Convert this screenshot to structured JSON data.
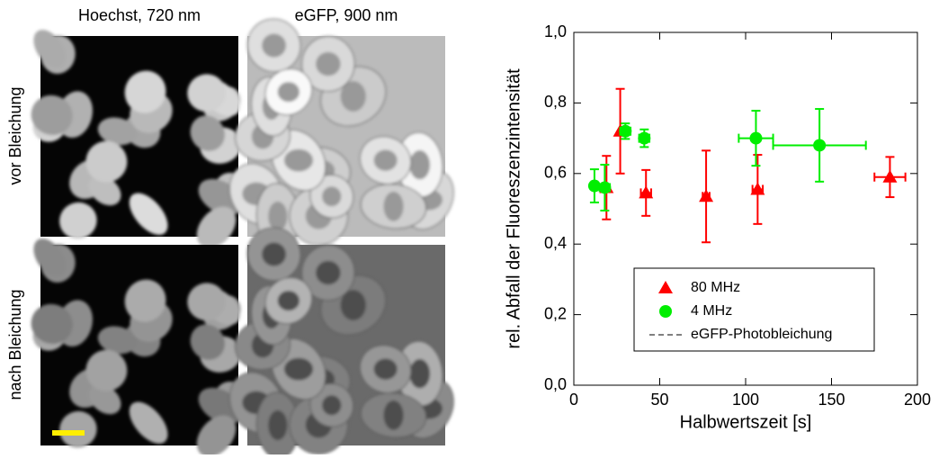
{
  "figure": {
    "column_titles": [
      "Hoechst, 720 nm",
      "eGFP, 900 nm"
    ],
    "row_labels": [
      "vor Bleichung",
      "nach Bleichung"
    ]
  },
  "chart_data": {
    "type": "scatter",
    "x_label": "Halbwertszeit [s]",
    "y_label": "rel. Abfall der Fluoreszenzintensität",
    "xlim": [
      0,
      200
    ],
    "xticks": [
      0,
      50,
      100,
      150,
      200
    ],
    "ylim": [
      0,
      1.0
    ],
    "yticks": [
      {
        "value": 0,
        "label": "0,0"
      },
      {
        "value": 0.2,
        "label": "0,2"
      },
      {
        "value": 0.4,
        "label": "0,4"
      },
      {
        "value": 0.6,
        "label": "0,6"
      },
      {
        "value": 0.8,
        "label": "0,8"
      },
      {
        "value": 1.0,
        "label": "1,0"
      }
    ],
    "series": [
      {
        "name": "80 MHz",
        "color": "#ff0000",
        "marker": "triangle",
        "x": [
          19,
          27,
          42,
          77,
          107,
          184
        ],
        "values": [
          0.56,
          0.72,
          0.545,
          0.535,
          0.555,
          0.59
        ],
        "xerr": [
          0,
          0,
          3,
          2,
          3,
          9
        ],
        "yerr": [
          0.09,
          0.12,
          0.065,
          0.13,
          0.098,
          0.057
        ]
      },
      {
        "name": "4 MHz",
        "color": "#00ee00",
        "marker": "circle",
        "x": [
          12,
          18,
          30,
          41,
          106,
          143
        ],
        "values": [
          0.565,
          0.56,
          0.72,
          0.7,
          0.7,
          0.68
        ],
        "xerr": [
          2,
          3,
          3,
          3,
          10,
          27
        ],
        "yerr": [
          0.047,
          0.065,
          0.022,
          0.025,
          0.078,
          0.103
        ]
      }
    ],
    "reference_line": {
      "name": "eGFP-Photobleichung",
      "value": 1.0
    }
  }
}
